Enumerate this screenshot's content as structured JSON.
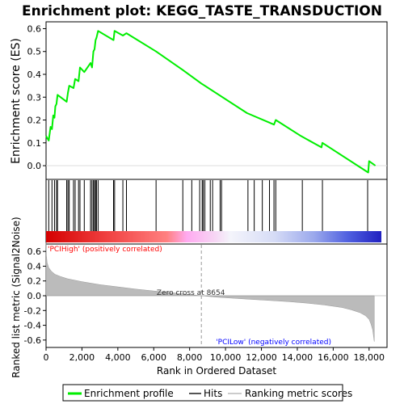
{
  "chart_data": {
    "type": "line",
    "title": "Enrichment plot: KEGG_TASTE_TRANSDUCTION",
    "panels": {
      "es": {
        "ylabel": "Enrichment score (ES)",
        "ylim": [
          -0.06,
          0.63
        ],
        "yticks": [
          0.0,
          0.1,
          0.2,
          0.3,
          0.4,
          0.5,
          0.6
        ],
        "ytick_labels": [
          "0.0",
          "0.1",
          "0.2",
          "0.3",
          "0.4",
          "0.5",
          "0.6"
        ],
        "series": [
          {
            "name": "Enrichment profile",
            "color": "#00ee00",
            "x": [
              0,
              150,
              250,
              330,
              400,
              470,
              520,
              580,
              640,
              1150,
              1220,
              1290,
              1530,
              1620,
              1810,
              1890,
              2130,
              2480,
              2560,
              2640,
              2700,
              2760,
              2810,
              2900,
              3760,
              3820,
              4280,
              4480,
              6130,
              7600,
              8650,
              11200,
              12400,
              12700,
              12800,
              14200,
              15350,
              15400,
              17950,
              18000,
              18350
            ],
            "y": [
              0.13,
              0.11,
              0.17,
              0.16,
              0.22,
              0.21,
              0.26,
              0.27,
              0.31,
              0.28,
              0.32,
              0.35,
              0.34,
              0.38,
              0.37,
              0.43,
              0.41,
              0.45,
              0.43,
              0.5,
              0.51,
              0.55,
              0.56,
              0.59,
              0.55,
              0.59,
              0.57,
              0.58,
              0.5,
              0.42,
              0.36,
              0.23,
              0.19,
              0.18,
              0.2,
              0.13,
              0.08,
              0.1,
              -0.03,
              0.02,
              0.0
            ]
          }
        ]
      },
      "hits": {
        "label": "Hits",
        "positions": [
          150,
          330,
          470,
          580,
          640,
          1150,
          1220,
          1290,
          1530,
          1620,
          1810,
          1890,
          2130,
          2480,
          2560,
          2640,
          2700,
          2760,
          2810,
          2900,
          3760,
          3820,
          4280,
          4480,
          6130,
          7620,
          8120,
          8560,
          8700,
          8760,
          8850,
          9150,
          9280,
          9700,
          9780,
          11250,
          11600,
          12050,
          12450,
          12700,
          12800,
          14280,
          15400,
          17920
        ]
      },
      "metric": {
        "ylabel": "Ranked list metric (Signal2Noise)",
        "ylim": [
          -0.7,
          0.7
        ],
        "yticks": [
          -0.6,
          -0.4,
          -0.2,
          0.0,
          0.2,
          0.4,
          0.6
        ],
        "ytick_labels": [
          "-0.6",
          "-0.4",
          "-0.2",
          "0.0",
          "0.2",
          "0.4",
          "0.6"
        ],
        "x": [
          0,
          20,
          60,
          150,
          300,
          500,
          800,
          1200,
          2000,
          3000,
          4000,
          5000,
          6000,
          7000,
          8000,
          8654,
          9500,
          10500,
          11500,
          12500,
          13500,
          14500,
          15500,
          16500,
          17000,
          17500,
          17800,
          18000,
          18100,
          18200,
          18290
        ],
        "y": [
          0.72,
          0.55,
          0.45,
          0.38,
          0.33,
          0.29,
          0.26,
          0.23,
          0.19,
          0.15,
          0.12,
          0.09,
          0.065,
          0.04,
          0.015,
          0.0,
          -0.02,
          -0.035,
          -0.05,
          -0.065,
          -0.08,
          -0.1,
          -0.125,
          -0.16,
          -0.19,
          -0.23,
          -0.27,
          -0.32,
          -0.38,
          -0.46,
          -0.62
        ],
        "zero_cross_label": "Zero cross at 8654",
        "zero_cross_x": 8654
      }
    },
    "xlabel": "Rank in Ordered Dataset",
    "xlim": [
      0,
      19000
    ],
    "xticks": [
      0,
      2000,
      4000,
      6000,
      8000,
      10000,
      12000,
      14000,
      16000,
      18000
    ],
    "xtick_labels": [
      "0",
      "2,000",
      "4,000",
      "6,000",
      "8,000",
      "10,000",
      "12,000",
      "14,000",
      "16,000",
      "18,000"
    ],
    "n_ranked": 18290,
    "annotations": {
      "high": "'PCIHigh' (positively correlated)",
      "low": "'PCILow' (negatively correlated)"
    },
    "legend": {
      "placement": "bottom",
      "items": [
        {
          "label": "Enrichment profile",
          "color": "#00ee00",
          "kind": "line"
        },
        {
          "label": "Hits",
          "color": "#555555",
          "kind": "line"
        },
        {
          "label": "Ranking metric scores",
          "color": "#cccccc",
          "kind": "line"
        }
      ]
    },
    "colors": {
      "profile": "#00ee00",
      "hits": "#000000",
      "metric_fill": "#bbbbbb",
      "high_text": "#ff0000",
      "low_text": "#0000ff",
      "zero_line": "#999999"
    }
  }
}
